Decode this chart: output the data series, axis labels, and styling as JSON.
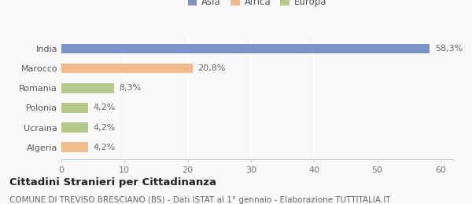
{
  "categories": [
    "Algeria",
    "Ucraina",
    "Polonia",
    "Romania",
    "Marocco",
    "India"
  ],
  "values": [
    4.2,
    4.2,
    4.2,
    8.3,
    20.8,
    58.3
  ],
  "labels": [
    "4,2%",
    "4,2%",
    "4,2%",
    "8,3%",
    "20,8%",
    "58,3%"
  ],
  "colors": [
    "#f0bc8c",
    "#b5c98a",
    "#b5c98a",
    "#b5c98a",
    "#f0bc8c",
    "#7b93c8"
  ],
  "legend_items": [
    {
      "label": "Asia",
      "color": "#7b93c8"
    },
    {
      "label": "Africa",
      "color": "#f0bc8c"
    },
    {
      "label": "Europa",
      "color": "#b5c98a"
    }
  ],
  "xlim": [
    0,
    62
  ],
  "xticks": [
    0,
    10,
    20,
    30,
    40,
    50,
    60
  ],
  "title_bold": "Cittadini Stranieri per Cittadinanza",
  "subtitle": "COMUNE DI TREVISO BRESCIANO (BS) - Dati ISTAT al 1° gennaio - Elaborazione TUTTITALIA.IT",
  "background_color": "#f9f9f9",
  "bar_height": 0.5,
  "title_fontsize": 9.5,
  "subtitle_fontsize": 7.5,
  "label_fontsize": 8,
  "tick_fontsize": 8,
  "legend_fontsize": 8.5
}
